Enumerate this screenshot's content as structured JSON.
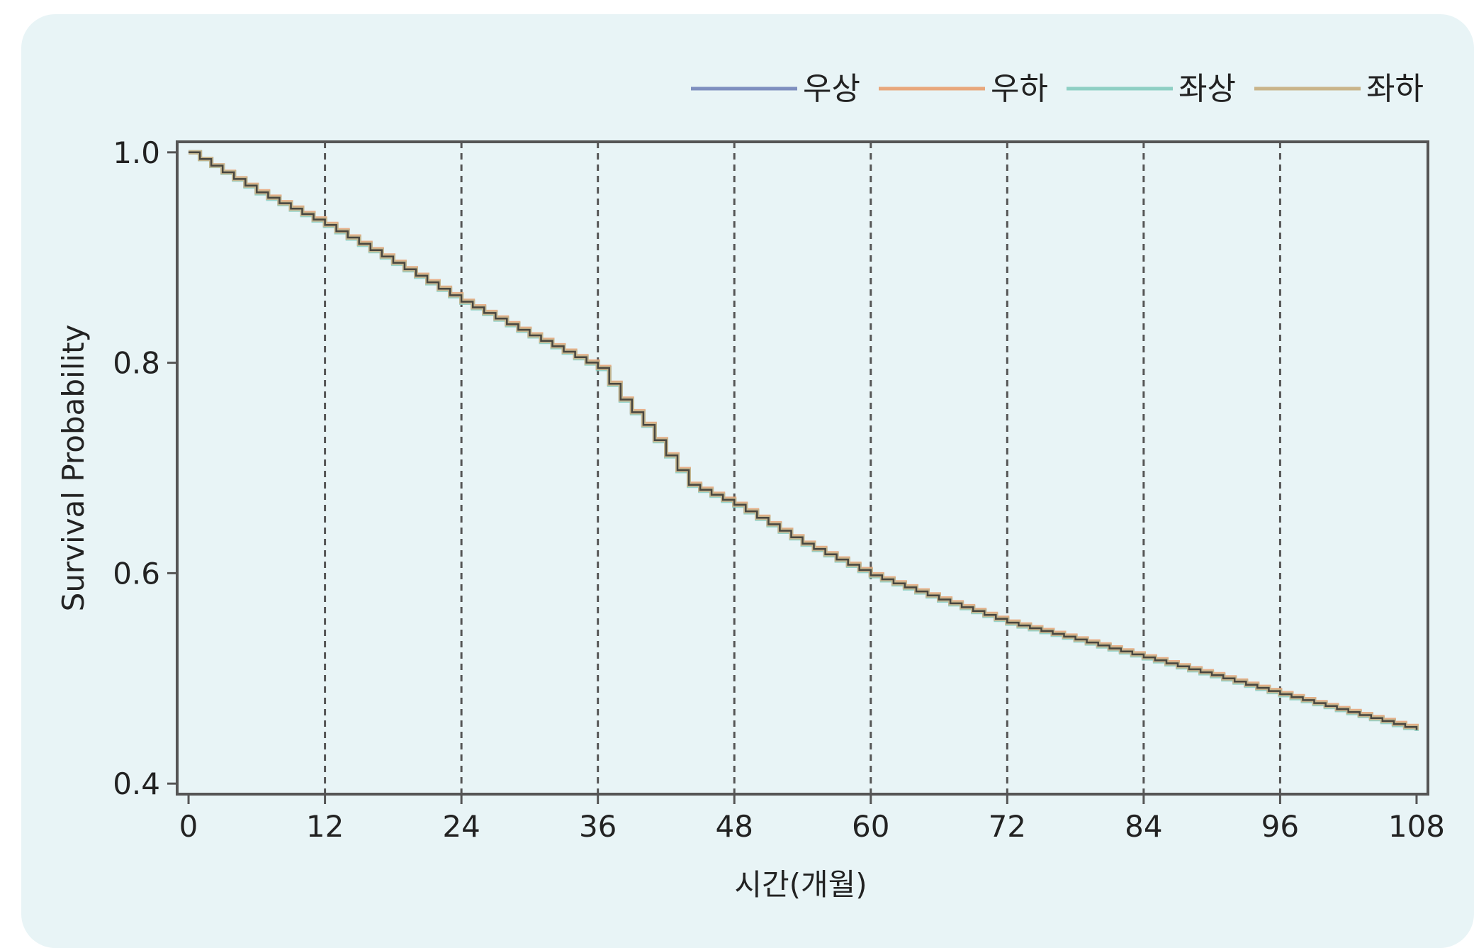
{
  "chart_data": {
    "type": "line",
    "step": true,
    "title": "",
    "xlabel": "시간(개월)",
    "ylabel": "Survival Probability",
    "xlim": [
      -1,
      109
    ],
    "ylim": [
      0.39,
      1.01
    ],
    "xticks": [
      0,
      12,
      24,
      36,
      48,
      60,
      72,
      84,
      96,
      108
    ],
    "yticks": [
      0.4,
      0.6,
      0.8,
      1.0
    ],
    "ytick_labels": [
      "0.4",
      "0.6",
      "0.8",
      "1.0"
    ],
    "grid": "vertical-dashed",
    "legend_position": "top-right",
    "x": [
      0,
      6,
      12,
      18,
      24,
      30,
      36,
      38,
      40,
      42,
      44,
      48,
      54,
      60,
      66,
      72,
      78,
      84,
      90,
      96,
      102,
      108
    ],
    "series": [
      {
        "name": "우상",
        "color": "#7e8fbf",
        "values": [
          1.0,
          0.962,
          0.931,
          0.895,
          0.858,
          0.826,
          0.795,
          0.765,
          0.741,
          0.712,
          0.684,
          0.665,
          0.628,
          0.598,
          0.575,
          0.553,
          0.537,
          0.52,
          0.503,
          0.485,
          0.468,
          0.451
        ]
      },
      {
        "name": "우하",
        "color": "#e8a77c",
        "values": [
          1.0,
          0.963,
          0.932,
          0.896,
          0.859,
          0.827,
          0.796,
          0.766,
          0.742,
          0.713,
          0.685,
          0.666,
          0.629,
          0.599,
          0.576,
          0.554,
          0.538,
          0.521,
          0.504,
          0.486,
          0.469,
          0.452
        ]
      },
      {
        "name": "좌상",
        "color": "#8ecfc4",
        "values": [
          1.0,
          0.961,
          0.93,
          0.894,
          0.857,
          0.825,
          0.794,
          0.764,
          0.74,
          0.711,
          0.683,
          0.664,
          0.627,
          0.597,
          0.574,
          0.552,
          0.536,
          0.519,
          0.502,
          0.484,
          0.467,
          0.45
        ]
      },
      {
        "name": "좌하",
        "color": "#c9b48a",
        "values": [
          1.0,
          0.962,
          0.931,
          0.895,
          0.858,
          0.826,
          0.795,
          0.765,
          0.741,
          0.712,
          0.684,
          0.665,
          0.628,
          0.598,
          0.575,
          0.553,
          0.537,
          0.52,
          0.503,
          0.485,
          0.468,
          0.451
        ]
      }
    ]
  }
}
